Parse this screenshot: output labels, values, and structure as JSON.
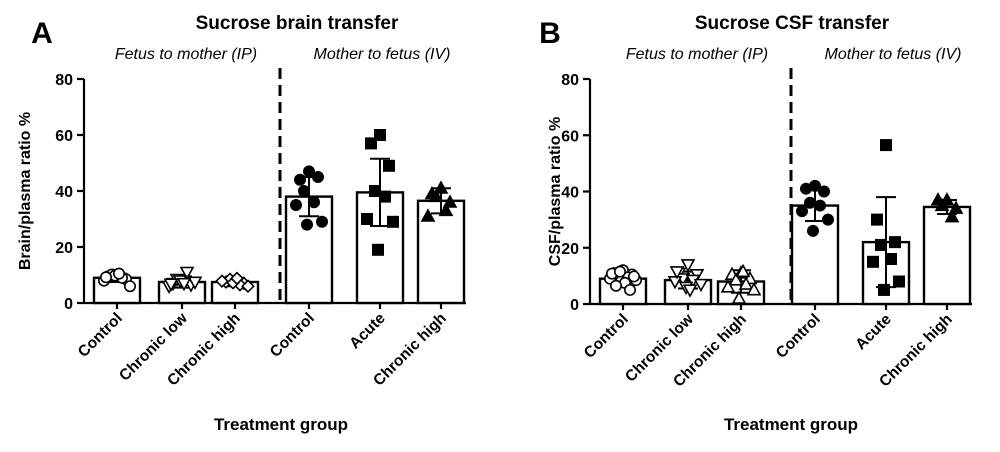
{
  "chart_data": [
    {
      "panel_letter": "A",
      "type": "bar",
      "title": "Sucrose brain transfer",
      "ylabel": "Brain/plasma ratio %",
      "xlabel": "Treatment group",
      "ylim": [
        0,
        80
      ],
      "yticks": [
        0,
        20,
        40,
        60,
        80
      ],
      "group_headers": [
        "Fetus to mother (IP)",
        "Mother to fetus (IV)"
      ],
      "categories": [
        "Control",
        "Chronic low",
        "Chronic high",
        "Control",
        "Acute",
        "Chronic high"
      ],
      "marker_shapes": [
        "circle-open",
        "triangle-down-open",
        "diamond-open",
        "circle",
        "square",
        "triangle"
      ],
      "values": [
        9.0,
        7.5,
        7.5,
        38.0,
        39.5,
        36.5
      ],
      "error_sd": [
        1.5,
        2.0,
        1.5,
        7.0,
        12.0,
        4.5
      ],
      "points": [
        [
          10.0,
          9.5,
          8.5,
          10.2,
          9.0,
          8.0,
          6.0,
          9.8,
          10.5,
          9.2
        ],
        [
          8.0,
          7.0,
          6.5,
          8.5,
          11.0,
          6.0,
          7.5,
          8.0,
          7.0,
          6.8
        ],
        [
          8.0,
          7.5,
          7.0,
          8.5,
          6.5,
          7.8,
          6.0,
          7.2,
          8.8
        ],
        [
          47.0,
          44.0,
          45.0,
          40.0,
          36.0,
          35.0,
          29.0,
          28.0
        ],
        [
          60.0,
          57.0,
          49.0,
          40.0,
          38.0,
          30.0,
          29.0,
          19.0
        ],
        [
          41.0,
          39.0,
          36.0,
          38.0,
          33.0,
          31.0
        ]
      ]
    },
    {
      "panel_letter": "B",
      "type": "bar",
      "title": "Sucrose CSF transfer",
      "ylabel": "CSF/plasma ratio %",
      "xlabel": "Treatment group",
      "ylim": [
        0,
        80
      ],
      "yticks": [
        0,
        20,
        40,
        60,
        80
      ],
      "group_headers": [
        "Fetus to mother (IP)",
        "Mother to fetus (IV)"
      ],
      "categories": [
        "Control",
        "Chronic low",
        "Chronic high",
        "Control",
        "Acute",
        "Chronic high"
      ],
      "marker_shapes": [
        "circle-open",
        "triangle-down-open",
        "triangle-open",
        "circle",
        "square",
        "triangle"
      ],
      "values": [
        9.0,
        8.5,
        8.0,
        35.0,
        22.0,
        34.5
      ],
      "error_sd": [
        2.5,
        3.0,
        4.0,
        5.5,
        16.0,
        2.5
      ],
      "points": [
        [
          12.0,
          11.0,
          10.5,
          10.0,
          9.5,
          9.0,
          8.5,
          8.0,
          7.5,
          10.8,
          9.8,
          6.5,
          5.0,
          11.5
        ],
        [
          14.0,
          11.0,
          10.5,
          9.0,
          8.5,
          8.0,
          7.0,
          6.0,
          5.0,
          11.5
        ],
        [
          11.0,
          10.5,
          9.0,
          8.5,
          7.0,
          6.0,
          5.0,
          2.0,
          11.5
        ],
        [
          42.0,
          41.0,
          40.0,
          36.0,
          35.0,
          33.0,
          30.0,
          26.0
        ],
        [
          56.5,
          30.0,
          22.0,
          21.0,
          16.0,
          15.0,
          8.0,
          5.0
        ],
        [
          37.0,
          37.0,
          34.0,
          35.0,
          31.0
        ]
      ]
    }
  ]
}
